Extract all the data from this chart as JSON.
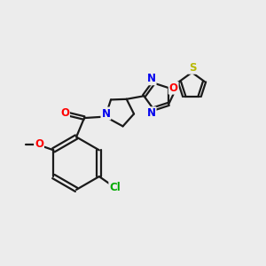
{
  "background_color": "#ececec",
  "bond_color": "#1a1a1a",
  "bond_width": 1.6,
  "atom_colors": {
    "O": "#ff0000",
    "N": "#0000ee",
    "S": "#b8b800",
    "Cl": "#00aa00",
    "C": "#1a1a1a"
  },
  "font_size": 8.5
}
